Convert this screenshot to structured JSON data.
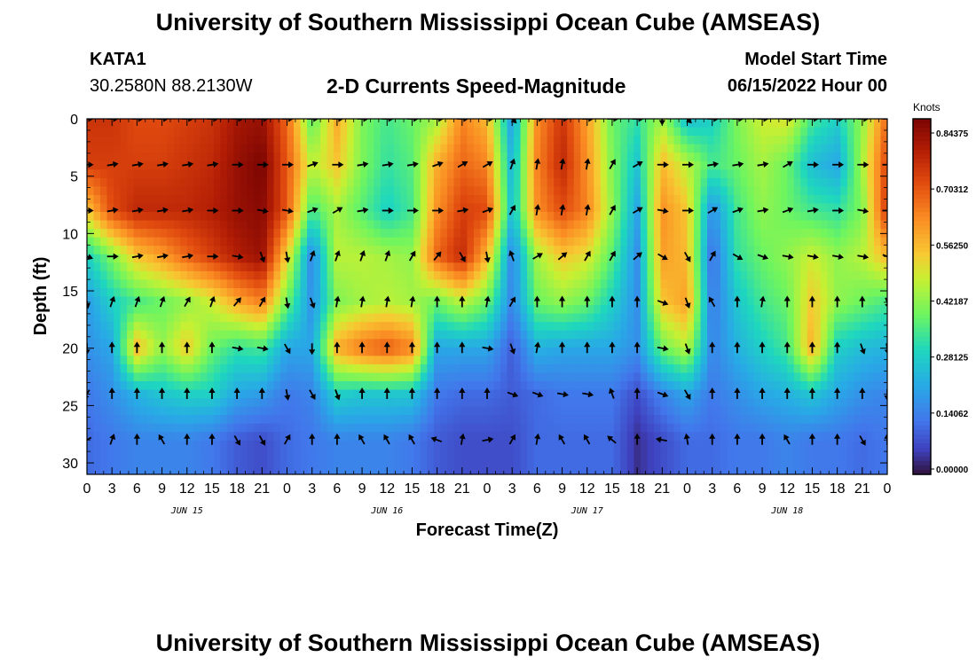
{
  "header": {
    "title": "University of Southern Mississippi Ocean Cube (AMSEAS)",
    "station": "KATA1",
    "coords": "30.2580N  88.2130W",
    "plot_title": "2-D Currents Speed-Magnitude",
    "model_label": "Model Start Time",
    "model_time": "06/15/2022 Hour 00"
  },
  "footer": {
    "title": "University of Southern Mississippi Ocean Cube (AMSEAS)"
  },
  "chart_data": {
    "type": "heatmap",
    "title": "2-D Currents Speed-Magnitude",
    "xlabel": "Forecast Time(Z)",
    "ylabel": "Depth (ft)",
    "x_ticks": [
      "0",
      "3",
      "6",
      "9",
      "12",
      "15",
      "18",
      "21",
      "0",
      "3",
      "6",
      "9",
      "12",
      "15",
      "18",
      "21",
      "0",
      "3",
      "6",
      "9",
      "12",
      "15",
      "18",
      "21",
      "0",
      "3",
      "6",
      "9",
      "12",
      "15",
      "18",
      "21",
      "0"
    ],
    "x_range_hours": [
      0,
      96
    ],
    "day_labels": [
      {
        "label": "JUN 15",
        "center_hour": 12
      },
      {
        "label": "JUN 16",
        "center_hour": 36
      },
      {
        "label": "JUN 17",
        "center_hour": 60
      },
      {
        "label": "JUN 18",
        "center_hour": 84
      }
    ],
    "y_ticks": [
      "0",
      "5",
      "10",
      "15",
      "20",
      "25",
      "30"
    ],
    "ylim": [
      0,
      31
    ],
    "y_inverted": true,
    "colorbar": {
      "title": "Knots",
      "labels": [
        "0.84375",
        "0.70312",
        "0.56250",
        "0.42187",
        "0.28125",
        "0.14062",
        "0.00000"
      ],
      "min": 0.0,
      "max": 0.9
    },
    "depth_levels_ft": [
      0,
      4,
      8,
      12,
      16,
      20,
      24,
      28
    ],
    "arrow_hours": [
      0,
      3,
      6,
      9,
      12,
      15,
      18,
      21,
      24,
      27,
      30,
      33,
      36,
      39,
      42,
      45,
      48,
      51,
      54,
      57,
      60,
      63,
      66,
      69,
      72,
      75,
      78,
      81,
      84,
      87,
      90,
      93,
      96
    ],
    "speed_knots": [
      [
        0.78,
        0.78,
        0.74,
        0.74,
        0.76,
        0.78,
        0.84,
        0.86,
        0.7,
        0.38,
        0.6,
        0.42,
        0.36,
        0.4,
        0.46,
        0.66,
        0.58,
        0.2,
        0.64,
        0.78,
        0.62,
        0.4,
        0.34,
        0.46,
        0.26,
        0.3,
        0.42,
        0.5,
        0.52,
        0.36,
        0.3,
        0.44,
        0.7
      ],
      [
        0.76,
        0.76,
        0.76,
        0.76,
        0.78,
        0.8,
        0.86,
        0.9,
        0.72,
        0.48,
        0.56,
        0.42,
        0.34,
        0.38,
        0.6,
        0.7,
        0.66,
        0.24,
        0.66,
        0.8,
        0.64,
        0.42,
        0.28,
        0.58,
        0.48,
        0.36,
        0.4,
        0.46,
        0.4,
        0.26,
        0.22,
        0.46,
        0.76
      ],
      [
        0.56,
        0.74,
        0.8,
        0.8,
        0.8,
        0.82,
        0.86,
        0.88,
        0.72,
        0.36,
        0.46,
        0.38,
        0.3,
        0.36,
        0.64,
        0.76,
        0.74,
        0.26,
        0.64,
        0.74,
        0.66,
        0.44,
        0.22,
        0.64,
        0.56,
        0.18,
        0.36,
        0.44,
        0.4,
        0.36,
        0.34,
        0.42,
        0.78
      ],
      [
        0.3,
        0.42,
        0.56,
        0.62,
        0.7,
        0.76,
        0.82,
        0.86,
        0.54,
        0.16,
        0.48,
        0.48,
        0.46,
        0.44,
        0.7,
        0.8,
        0.58,
        0.16,
        0.46,
        0.56,
        0.52,
        0.38,
        0.18,
        0.62,
        0.58,
        0.12,
        0.34,
        0.4,
        0.44,
        0.5,
        0.44,
        0.48,
        0.58
      ],
      [
        0.2,
        0.3,
        0.36,
        0.4,
        0.44,
        0.5,
        0.6,
        0.66,
        0.4,
        0.18,
        0.42,
        0.46,
        0.48,
        0.46,
        0.4,
        0.48,
        0.4,
        0.16,
        0.4,
        0.44,
        0.4,
        0.3,
        0.18,
        0.56,
        0.62,
        0.14,
        0.28,
        0.36,
        0.4,
        0.56,
        0.44,
        0.4,
        0.36
      ],
      [
        0.18,
        0.22,
        0.58,
        0.44,
        0.56,
        0.4,
        0.34,
        0.36,
        0.22,
        0.22,
        0.6,
        0.68,
        0.72,
        0.66,
        0.22,
        0.22,
        0.22,
        0.1,
        0.24,
        0.22,
        0.22,
        0.22,
        0.18,
        0.4,
        0.48,
        0.16,
        0.24,
        0.3,
        0.36,
        0.6,
        0.3,
        0.26,
        0.24
      ],
      [
        0.14,
        0.18,
        0.24,
        0.28,
        0.3,
        0.3,
        0.22,
        0.2,
        0.14,
        0.16,
        0.3,
        0.28,
        0.28,
        0.28,
        0.14,
        0.12,
        0.12,
        0.1,
        0.12,
        0.14,
        0.14,
        0.14,
        0.08,
        0.16,
        0.22,
        0.14,
        0.18,
        0.22,
        0.24,
        0.28,
        0.22,
        0.18,
        0.16
      ],
      [
        0.12,
        0.14,
        0.16,
        0.16,
        0.16,
        0.14,
        0.1,
        0.08,
        0.12,
        0.14,
        0.16,
        0.16,
        0.16,
        0.14,
        0.1,
        0.08,
        0.08,
        0.08,
        0.12,
        0.12,
        0.12,
        0.12,
        0.04,
        0.08,
        0.12,
        0.12,
        0.14,
        0.14,
        0.16,
        0.14,
        0.14,
        0.12,
        0.14
      ]
    ],
    "direction_deg": [
      [
        90,
        90,
        90,
        90,
        90,
        90,
        90,
        90,
        90,
        90,
        90,
        90,
        90,
        90,
        90,
        90,
        90,
        135,
        90,
        90,
        90,
        90,
        90,
        180,
        135,
        90,
        90,
        90,
        90,
        90,
        90,
        90,
        90
      ],
      [
        90,
        80,
        80,
        80,
        80,
        80,
        90,
        90,
        90,
        70,
        90,
        80,
        80,
        80,
        70,
        60,
        60,
        20,
        10,
        10,
        10,
        30,
        60,
        90,
        90,
        80,
        80,
        80,
        60,
        90,
        90,
        90,
        90
      ],
      [
        90,
        80,
        80,
        80,
        80,
        90,
        90,
        100,
        100,
        70,
        60,
        80,
        90,
        90,
        90,
        80,
        70,
        30,
        10,
        10,
        10,
        30,
        60,
        100,
        90,
        60,
        70,
        80,
        70,
        80,
        90,
        100,
        90
      ],
      [
        110,
        90,
        80,
        80,
        80,
        90,
        100,
        160,
        170,
        20,
        20,
        20,
        20,
        30,
        40,
        150,
        170,
        340,
        60,
        50,
        30,
        30,
        50,
        120,
        150,
        30,
        120,
        110,
        100,
        100,
        100,
        100,
        110
      ],
      [
        170,
        20,
        20,
        20,
        30,
        20,
        40,
        30,
        170,
        160,
        10,
        10,
        10,
        10,
        0,
        0,
        10,
        30,
        0,
        0,
        0,
        0,
        0,
        110,
        160,
        330,
        0,
        10,
        0,
        0,
        0,
        0,
        160
      ],
      [
        180,
        0,
        0,
        0,
        0,
        0,
        100,
        100,
        150,
        180,
        0,
        0,
        0,
        0,
        0,
        0,
        100,
        160,
        10,
        0,
        0,
        0,
        0,
        100,
        160,
        0,
        0,
        0,
        0,
        0,
        0,
        160,
        170
      ],
      [
        210,
        0,
        0,
        0,
        0,
        0,
        0,
        0,
        170,
        150,
        160,
        0,
        0,
        0,
        0,
        0,
        0,
        110,
        110,
        100,
        100,
        340,
        0,
        110,
        150,
        0,
        0,
        0,
        0,
        0,
        0,
        0,
        180
      ],
      [
        240,
        20,
        0,
        330,
        0,
        0,
        150,
        150,
        30,
        0,
        0,
        330,
        330,
        330,
        290,
        10,
        80,
        30,
        10,
        330,
        330,
        310,
        0,
        280,
        350,
        0,
        0,
        0,
        330,
        0,
        0,
        150,
        0
      ]
    ]
  }
}
